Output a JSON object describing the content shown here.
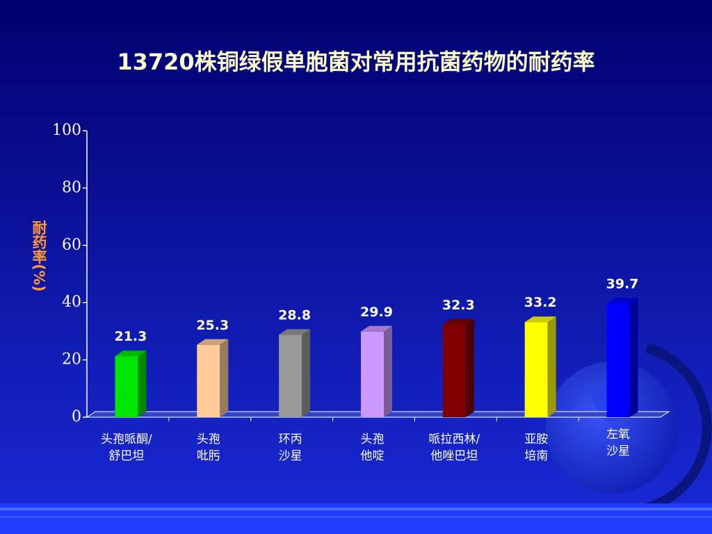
{
  "chart_data": {
    "type": "bar",
    "title": "13720株铜绿假单胞菌对常用抗菌药物的耐药率",
    "y_label": "耐药率(%)",
    "categories": [
      [
        "头孢哌酮/",
        "舒巴坦"
      ],
      [
        "头孢",
        "吡肟"
      ],
      [
        "环丙",
        "沙星"
      ],
      [
        "头孢",
        "他啶"
      ],
      [
        "哌拉西林/",
        "他唑巴坦"
      ],
      [
        "亚胺",
        "培南"
      ],
      [
        "左氧",
        "沙星"
      ]
    ],
    "values": [
      21.3,
      25.3,
      28.8,
      29.9,
      32.3,
      33.2,
      39.7
    ],
    "colors": [
      "#00e600",
      "#ffcc99",
      "#999999",
      "#cc99ff",
      "#800000",
      "#ffff00",
      "#0000ff"
    ],
    "ylim": [
      0,
      100
    ],
    "yticks": [
      0,
      20,
      40,
      60,
      80,
      100
    ]
  }
}
